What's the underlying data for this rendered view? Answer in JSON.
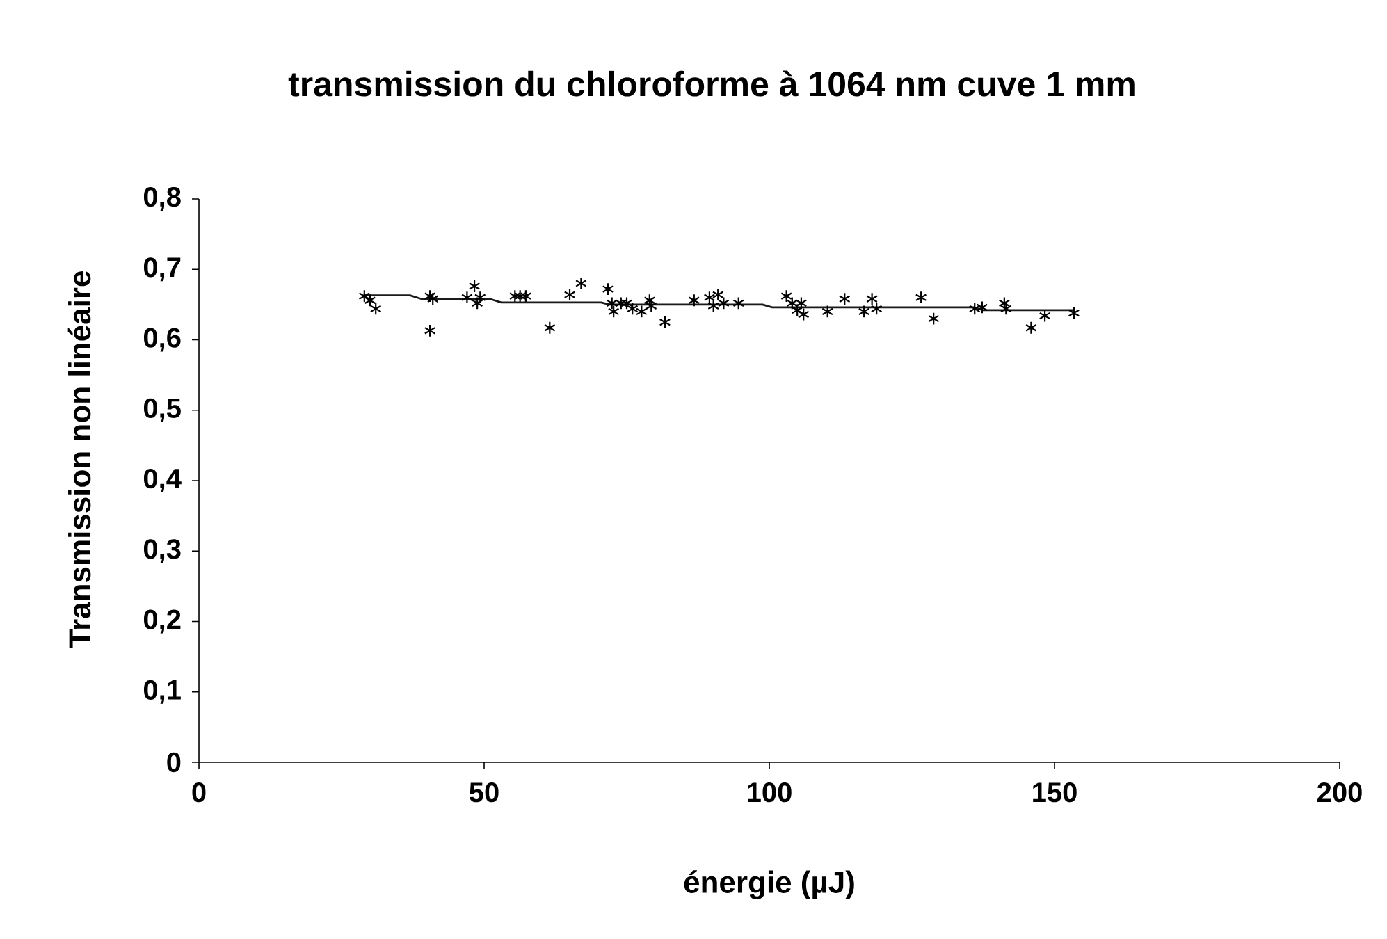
{
  "chart_data": {
    "type": "scatter",
    "title": "transmission du chloroforme à 1064 nm cuve 1 mm",
    "xlabel": "énergie (µJ)",
    "ylabel": "Transmission non linéaire",
    "xlim": [
      0,
      200
    ],
    "xticks": [
      0,
      50,
      100,
      150,
      200
    ],
    "ylim": [
      0,
      0.8
    ],
    "yticks": [
      0,
      {
        "value": 0.1,
        "label": "0,1"
      },
      {
        "value": 0.2,
        "label": "0,2"
      },
      {
        "value": 0.3,
        "label": "0,3"
      },
      {
        "value": 0.4,
        "label": "0,4"
      },
      {
        "value": 0.5,
        "label": "0,5"
      },
      {
        "value": 0.6,
        "label": "0,6"
      },
      {
        "value": 0.7,
        "label": "0,7"
      },
      {
        "value": 0.8,
        "label": "0,8"
      }
    ],
    "series": [
      {
        "marker": "cross",
        "color": "#000000",
        "x": [
          29,
          30,
          31,
          40.5,
          40.5,
          41,
          47,
          48.3,
          48.8,
          49.3,
          55.4,
          56.3,
          57.3,
          61.5,
          65,
          67,
          71.7,
          72.4,
          72.7,
          74,
          75,
          76,
          77.6,
          79,
          79.3,
          81.7,
          86.8,
          89.5,
          90.2,
          91,
          92,
          94.6,
          103,
          104,
          104.9,
          105.6,
          106,
          110.2,
          113.2,
          116.6,
          118,
          118.8,
          126.6,
          128.8,
          136,
          137.3,
          141.2,
          141.5,
          145.9,
          148.3,
          153.4
        ],
        "values": [
          0.662,
          0.656,
          0.644,
          0.662,
          0.613,
          0.658,
          0.66,
          0.676,
          0.652,
          0.66,
          0.662,
          0.662,
          0.662,
          0.617,
          0.664,
          0.68,
          0.672,
          0.652,
          0.64,
          0.652,
          0.652,
          0.644,
          0.64,
          0.656,
          0.648,
          0.625,
          0.656,
          0.66,
          0.648,
          0.664,
          0.652,
          0.652,
          0.662,
          0.652,
          0.642,
          0.652,
          0.636,
          0.64,
          0.658,
          0.64,
          0.658,
          0.644,
          0.66,
          0.63,
          0.644,
          0.646,
          0.652,
          0.644,
          0.617,
          0.634,
          0.638
        ]
      },
      {
        "type": "line",
        "marker": "none",
        "line_style": "solid",
        "color": "#1a1a1a",
        "x": [
          29,
          37,
          39,
          51,
          53,
          70.5,
          72,
          98.8,
          100.5,
          135.9,
          137.5,
          153.4
        ],
        "values": [
          0.663,
          0.663,
          0.658,
          0.658,
          0.653,
          0.653,
          0.65,
          0.65,
          0.646,
          0.646,
          0.642,
          0.642
        ]
      }
    ]
  }
}
